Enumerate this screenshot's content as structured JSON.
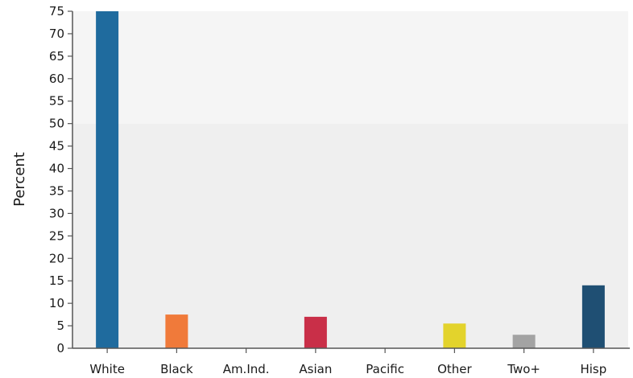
{
  "chart_data": {
    "type": "bar",
    "title": "",
    "xlabel": "",
    "ylabel": "Percent",
    "categories": [
      "White",
      "Black",
      "Am.Ind.",
      "Asian",
      "Pacific",
      "Other",
      "Two+",
      "Hisp"
    ],
    "values": [
      75,
      7.5,
      0,
      7,
      0,
      5.5,
      3,
      14
    ],
    "colors": [
      "#1f6b9e",
      "#f07a3a",
      "#9b59b6",
      "#c92f48",
      "#4aa3c9",
      "#e3d32c",
      "#a3a3a3",
      "#1f4f73"
    ],
    "ylim": [
      0,
      75
    ],
    "yticks": [
      0,
      5,
      10,
      15,
      20,
      25,
      30,
      35,
      40,
      45,
      50,
      55,
      60,
      65,
      70,
      75
    ],
    "grid": false,
    "legend": "none"
  }
}
